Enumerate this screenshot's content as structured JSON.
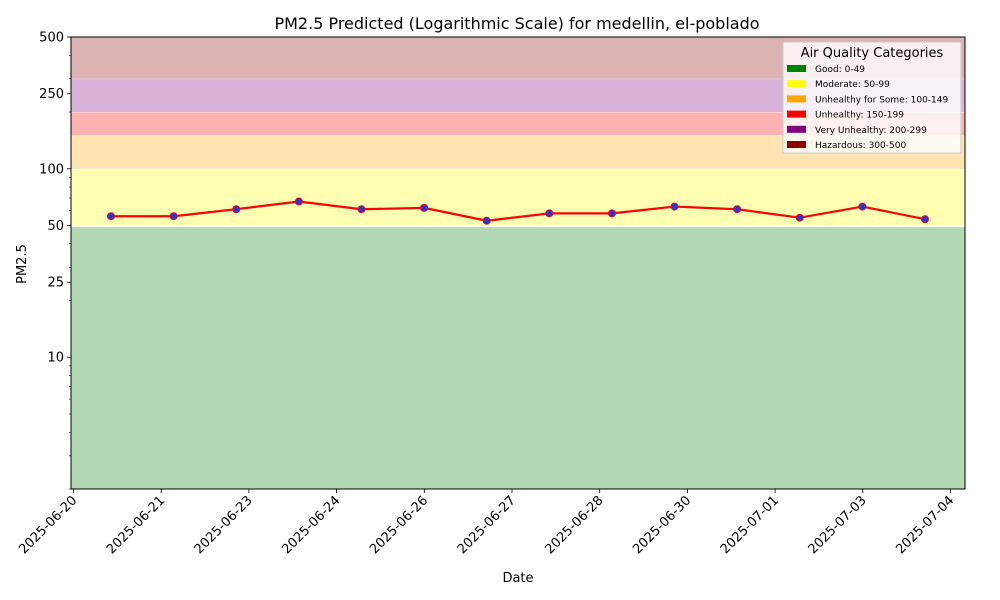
{
  "chart_data": {
    "type": "line",
    "title": "PM2.5 Predicted (Logarithmic Scale) for medellin, el-poblado",
    "xlabel": "Date",
    "ylabel": "PM2.5",
    "y_scale": "log",
    "ylim": [
      2,
      500
    ],
    "y_ticks": [
      10,
      25,
      50,
      100,
      250,
      500
    ],
    "x_ticks": [
      "2025-06-20",
      "2025-06-21",
      "2025-06-23",
      "2025-06-24",
      "2025-06-26",
      "2025-06-27",
      "2025-06-28",
      "2025-06-30",
      "2025-07-01",
      "2025-07-03",
      "2025-07-04"
    ],
    "series": [
      {
        "color": "#ff0000",
        "marker_color": "#3333cc",
        "values": [
          56,
          56,
          61,
          67,
          61,
          62,
          53,
          58,
          58,
          63,
          61,
          55,
          63,
          54
        ]
      }
    ],
    "grid": false,
    "bands": [
      {
        "label": "Good: 0-49",
        "min": 0,
        "max": 49,
        "color": "#008000"
      },
      {
        "label": "Moderate: 50-99",
        "min": 50,
        "max": 99,
        "color": "#ffff00"
      },
      {
        "label": "Unhealthy for Some: 100-149",
        "min": 100,
        "max": 149,
        "color": "#ffa500"
      },
      {
        "label": "Unhealthy: 150-199",
        "min": 150,
        "max": 199,
        "color": "#ff0000"
      },
      {
        "label": "Very Unhealthy: 200-299",
        "min": 200,
        "max": 299,
        "color": "#800080"
      },
      {
        "label": "Hazardous: 300-500",
        "min": 300,
        "max": 500,
        "color": "#8b0000"
      }
    ],
    "legend": {
      "title": "Air Quality Categories",
      "placement": "top-right"
    }
  }
}
